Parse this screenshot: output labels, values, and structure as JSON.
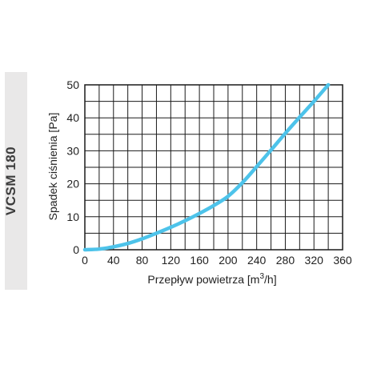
{
  "side_label": "VCSM 180",
  "chart_data": {
    "type": "line",
    "xlabel_main": "Przepływ powietrza [m",
    "xlabel_sup": "3",
    "xlabel_tail": "/h]",
    "ylabel": "Spadek ciśnienia [Pa]",
    "xlim": [
      0,
      360
    ],
    "ylim": [
      0,
      50
    ],
    "x_ticks": [
      0,
      40,
      80,
      120,
      160,
      200,
      240,
      280,
      320,
      360
    ],
    "y_ticks": [
      0,
      10,
      20,
      30,
      40,
      50
    ],
    "x_grid_step": 20,
    "y_grid_step": 5,
    "grid": true,
    "line_color": "#4dc3ea",
    "series": [
      {
        "x": [
          0,
          20,
          40,
          60,
          80,
          100,
          120,
          140,
          160,
          180,
          200,
          220,
          240,
          260,
          280,
          300,
          320,
          340
        ],
        "y": [
          0,
          0.2,
          0.9,
          1.9,
          3.3,
          5.0,
          6.8,
          8.8,
          11.0,
          13.4,
          16.2,
          20.3,
          25.2,
          30.2,
          35.3,
          40.2,
          45.0,
          50.0
        ]
      }
    ]
  }
}
